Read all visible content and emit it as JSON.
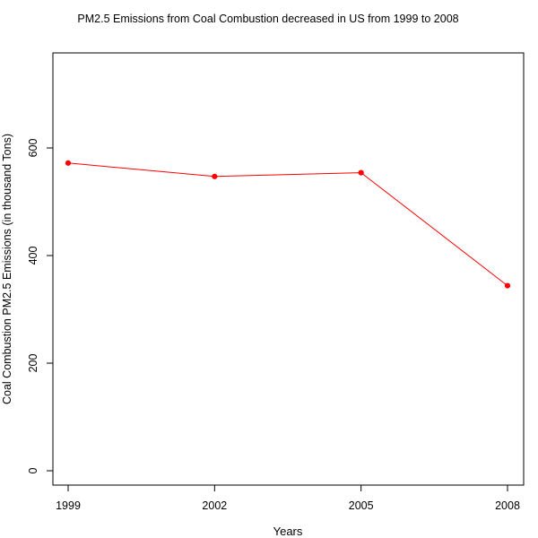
{
  "chart_data": {
    "type": "line",
    "title": "PM2.5 Emissions from Coal Combustion decreased in US from 1999 to 2008",
    "xlabel": "Years",
    "ylabel": "Coal Combustion PM2.5 Emissions (in thousand Tons)",
    "x": [
      1999,
      2002,
      2005,
      2008
    ],
    "series": [
      {
        "values": [
          572,
          547,
          554,
          344
        ]
      }
    ],
    "xticks": [
      "1999",
      "2002",
      "2005",
      "2008"
    ],
    "yticks": [
      0,
      200,
      400,
      600
    ],
    "ylim": [
      0,
      700
    ],
    "grid": false,
    "line_color": "#ff0000",
    "point_color": "#ff0000"
  }
}
